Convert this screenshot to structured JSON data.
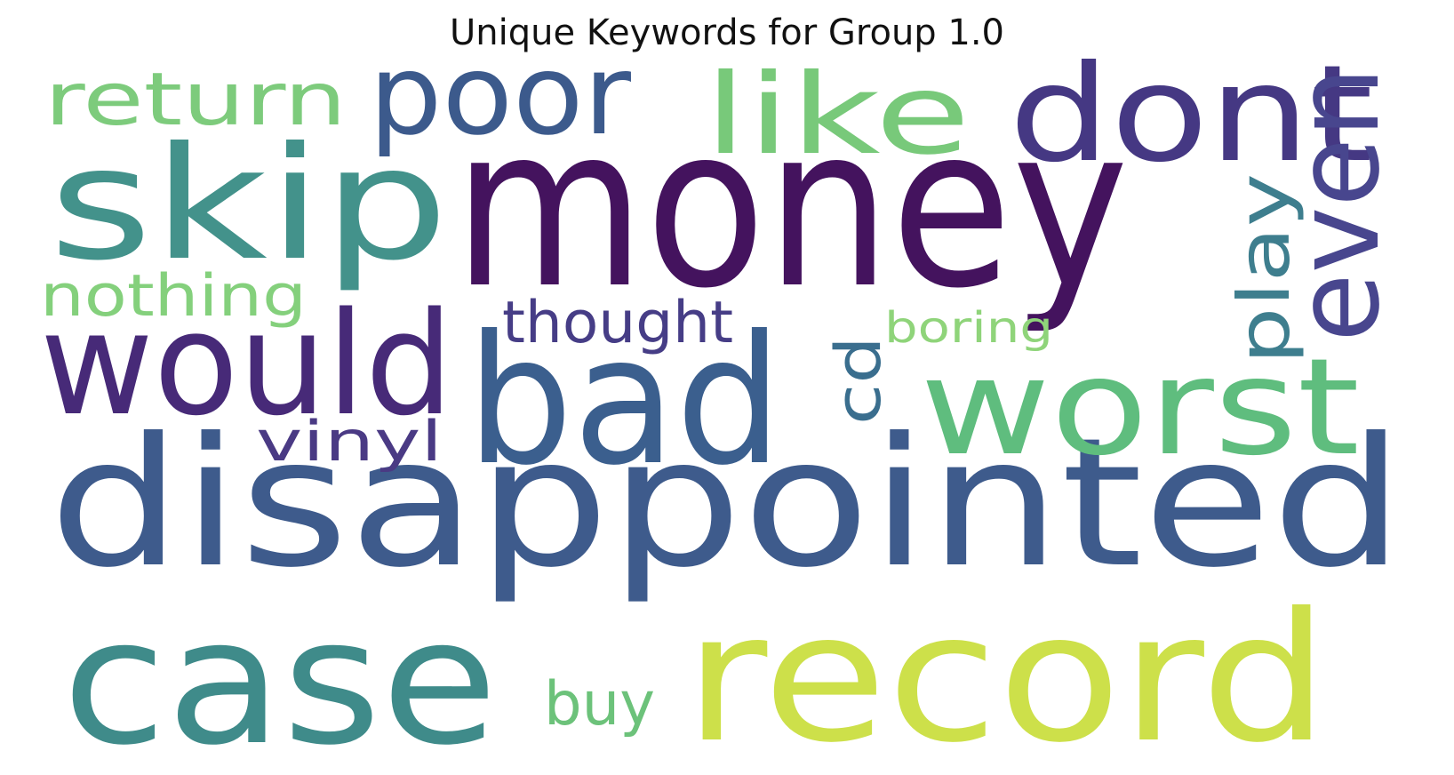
{
  "title": "Unique Keywords for Group 1.0",
  "words": [
    {
      "text": "money",
      "color": "#44135e"
    },
    {
      "text": "disappointed",
      "color": "#3e5b8c"
    },
    {
      "text": "record",
      "color": "#cde04a"
    },
    {
      "text": "case",
      "color": "#3f8b8a"
    },
    {
      "text": "bad",
      "color": "#3b5f8e"
    },
    {
      "text": "skip",
      "color": "#43928b"
    },
    {
      "text": "would",
      "color": "#472a78"
    },
    {
      "text": "worst",
      "color": "#5fbd7e"
    },
    {
      "text": "dont",
      "color": "#453883"
    },
    {
      "text": "poor",
      "color": "#3c5a8c"
    },
    {
      "text": "like",
      "color": "#78c97a"
    },
    {
      "text": "even",
      "color": "#48468e"
    },
    {
      "text": "return",
      "color": "#7dcb7c"
    },
    {
      "text": "play",
      "color": "#3e7e8e"
    },
    {
      "text": "nothing",
      "color": "#84d07c"
    },
    {
      "text": "thought",
      "color": "#463d86"
    },
    {
      "text": "vinyl",
      "color": "#4a3a84"
    },
    {
      "text": "cd",
      "color": "#3a6e8e"
    },
    {
      "text": "buy",
      "color": "#6cc27a"
    },
    {
      "text": "boring",
      "color": "#8fd47a"
    }
  ]
}
